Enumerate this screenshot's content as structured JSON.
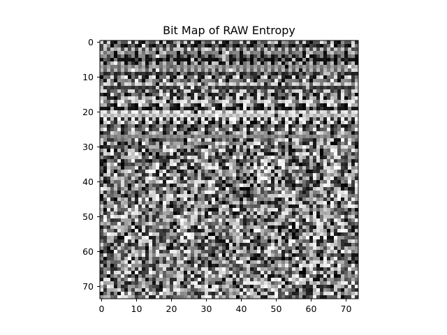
{
  "chart_data": {
    "type": "heatmap",
    "title": "Bit Map of RAW Entropy",
    "xlabel": "",
    "ylabel": "",
    "rows": 74,
    "cols": 74,
    "colormap": "gray",
    "x_ticks": [
      0,
      10,
      20,
      30,
      40,
      50,
      60,
      70
    ],
    "y_ticks": [
      0,
      10,
      20,
      30,
      40,
      50,
      60,
      70
    ],
    "x_tick_labels": [
      "0",
      "10",
      "20",
      "30",
      "40",
      "50",
      "60",
      "70"
    ],
    "y_tick_labels": [
      "0",
      "10",
      "20",
      "30",
      "40",
      "50",
      "60",
      "70"
    ],
    "xlim": [
      -0.5,
      73.5
    ],
    "ylim": [
      73.5,
      -0.5
    ],
    "grid": false,
    "value_range": [
      0,
      255
    ],
    "seed": 20240611,
    "structured_rows": [
      [
        0,
        27
      ]
    ],
    "structured_periods": [
      2,
      3,
      4,
      6,
      8
    ],
    "random_rows": [
      [
        28,
        73
      ]
    ]
  }
}
